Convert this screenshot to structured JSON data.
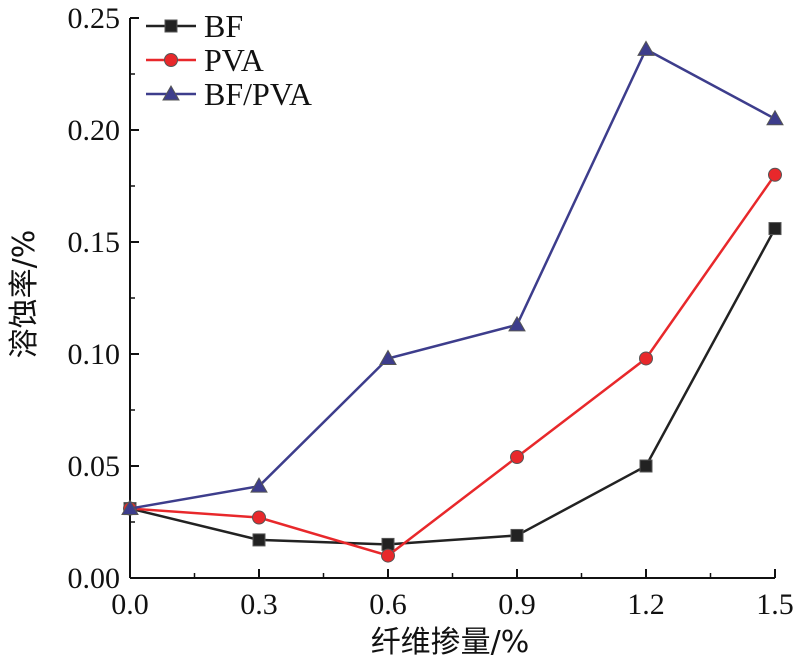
{
  "chart_data": {
    "type": "line",
    "x": [
      0.0,
      0.3,
      0.6,
      0.9,
      1.2,
      1.5
    ],
    "x_tick_labels": [
      "0.0",
      "0.3",
      "0.6",
      "0.9",
      "1.2",
      "1.5"
    ],
    "y_tick_values": [
      0.0,
      0.05,
      0.1,
      0.15,
      0.2,
      0.25
    ],
    "y_tick_labels": [
      "0.00",
      "0.05",
      "0.10",
      "0.15",
      "0.20",
      "0.25"
    ],
    "xlim": [
      0.0,
      1.5
    ],
    "ylim": [
      0.0,
      0.25
    ],
    "xlabel": "纤维掺量/%",
    "ylabel": "溶蚀率/%",
    "grid": false,
    "legend_position": "top-left",
    "series": [
      {
        "name": "BF",
        "color": "#222222",
        "marker": "square",
        "values": [
          0.031,
          0.017,
          0.015,
          0.019,
          0.05,
          0.156
        ]
      },
      {
        "name": "PVA",
        "color": "#e8282b",
        "marker": "circle",
        "values": [
          0.031,
          0.027,
          0.01,
          0.054,
          0.098,
          0.18
        ]
      },
      {
        "name": "BF/PVA",
        "color": "#3d3d8c",
        "marker": "triangle",
        "values": [
          0.031,
          0.041,
          0.098,
          0.113,
          0.236,
          0.205
        ]
      }
    ]
  }
}
